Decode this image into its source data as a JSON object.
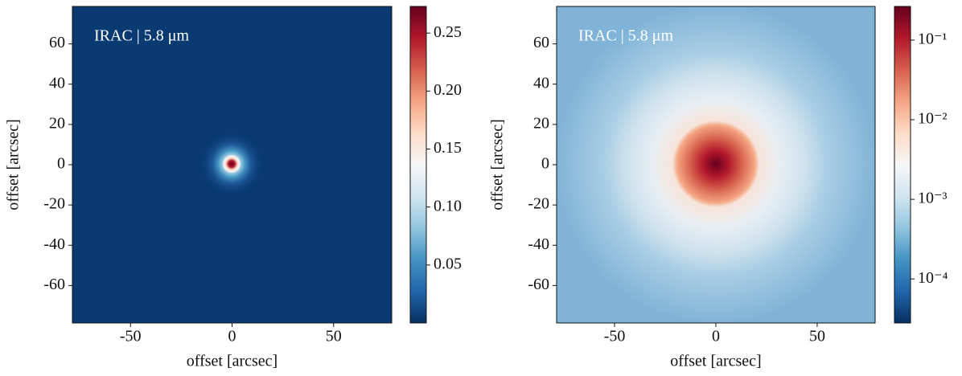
{
  "chart_data": [
    {
      "type": "heatmap",
      "annotation": "IRAC | 5.8 μm",
      "xlabel": "offset [arcsec]",
      "ylabel": "offset [arcsec]",
      "xlim": [
        -78.6,
        78.6
      ],
      "ylim": [
        -78.6,
        78.6
      ],
      "xticks": [
        -50,
        0,
        50
      ],
      "yticks": [
        -60,
        -40,
        -20,
        0,
        20,
        40,
        60
      ],
      "colormap": "RdBu_r",
      "color_scale": "linear",
      "clim": [
        0,
        0.273
      ],
      "colorbar_ticks": [
        0.05,
        {
          "value": 0.1,
          "label": "0.10"
        },
        0.15,
        {
          "value": 0.2,
          "label": "0.20"
        },
        0.25
      ]
    },
    {
      "type": "heatmap",
      "annotation": "IRAC | 5.8 μm",
      "xlabel": "offset [arcsec]",
      "ylabel": "offset [arcsec]",
      "xlim": [
        -78.6,
        78.6
      ],
      "ylim": [
        -78.6,
        78.6
      ],
      "xticks": [
        -50,
        0,
        50
      ],
      "yticks": [
        -60,
        -40,
        -20,
        0,
        20,
        40,
        60
      ],
      "colormap": "RdBu_r",
      "color_scale": "log",
      "clim": [
        2.8e-05,
        0.265
      ],
      "colorbar_ticks": [
        {
          "value": 0.1,
          "label": "10⁻¹"
        },
        {
          "value": 0.01,
          "label": "10⁻²"
        },
        {
          "value": 0.001,
          "label": "10⁻³"
        },
        {
          "value": 0.0001,
          "label": "10⁻⁴"
        }
      ]
    }
  ]
}
